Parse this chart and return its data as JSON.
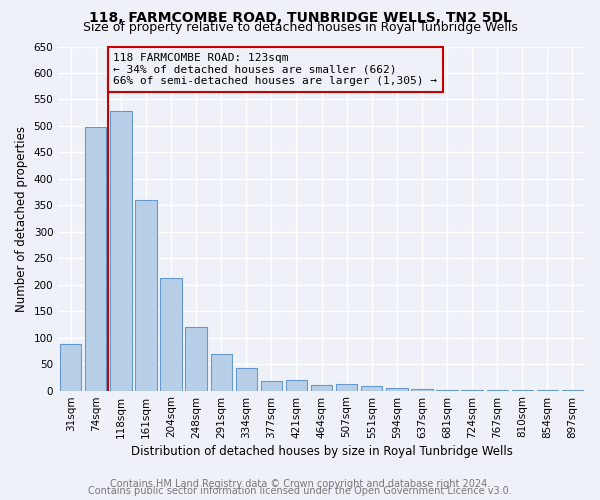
{
  "title": "118, FARMCOMBE ROAD, TUNBRIDGE WELLS, TN2 5DL",
  "subtitle": "Size of property relative to detached houses in Royal Tunbridge Wells",
  "xlabel": "Distribution of detached houses by size in Royal Tunbridge Wells",
  "ylabel": "Number of detached properties",
  "footer1": "Contains HM Land Registry data © Crown copyright and database right 2024.",
  "footer2": "Contains public sector information licensed under the Open Government Licence v3.0.",
  "bar_labels": [
    "31sqm",
    "74sqm",
    "118sqm",
    "161sqm",
    "204sqm",
    "248sqm",
    "291sqm",
    "334sqm",
    "377sqm",
    "421sqm",
    "464sqm",
    "507sqm",
    "551sqm",
    "594sqm",
    "637sqm",
    "681sqm",
    "724sqm",
    "767sqm",
    "810sqm",
    "854sqm",
    "897sqm"
  ],
  "bar_values": [
    88,
    498,
    528,
    360,
    213,
    121,
    70,
    42,
    18,
    20,
    10,
    12,
    8,
    5,
    3,
    2,
    2,
    1,
    1,
    1,
    1
  ],
  "bar_color": "#b8cfe8",
  "bar_edgecolor": "#6699cc",
  "highlight_index": 2,
  "highlight_color": "#cc0000",
  "annotation_line1": "118 FARMCOMBE ROAD: 123sqm",
  "annotation_line2": "← 34% of detached houses are smaller (662)",
  "annotation_line3": "66% of semi-detached houses are larger (1,305) →",
  "annotation_box_color": "#cc0000",
  "ylim": [
    0,
    650
  ],
  "yticks": [
    0,
    50,
    100,
    150,
    200,
    250,
    300,
    350,
    400,
    450,
    500,
    550,
    600,
    650
  ],
  "background_color": "#eef2f8",
  "grid_color": "#ffffff",
  "title_fontsize": 10,
  "subtitle_fontsize": 9,
  "xlabel_fontsize": 8.5,
  "ylabel_fontsize": 8.5,
  "tick_fontsize": 7.5,
  "footer_fontsize": 7,
  "annotation_fontsize": 8
}
